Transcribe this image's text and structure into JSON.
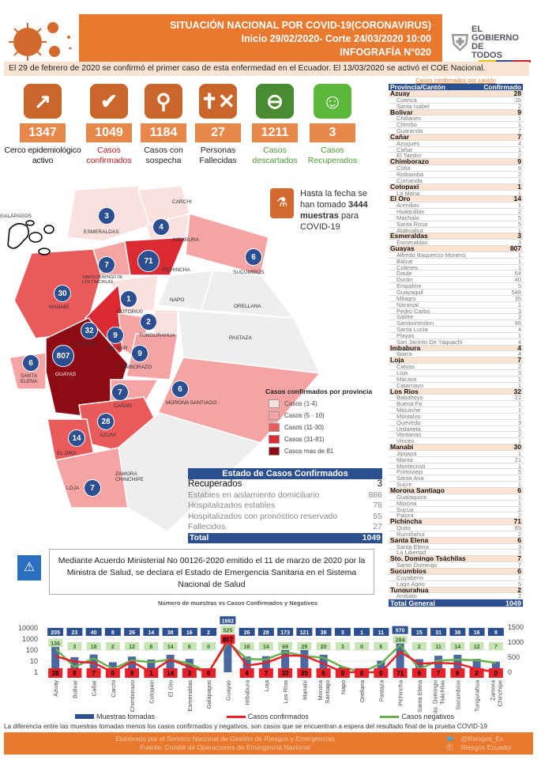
{
  "header": {
    "title": "SITUACIÓN NACIONAL POR  COVID-19(CORONAVIRUS)",
    "period": "Inicio 29/02/2020- Corte 24/03/2020 10:00",
    "infographic": "INFOGRAFÍA N°020",
    "logo_text": "EL GOBIERNO DE TODOS"
  },
  "info": "El 29 de febrero de 2020 se confirmó el primer caso de esta enfermedad en el Ecuador. El 13/03/2020 se activó el COE Nacional.",
  "stats": [
    {
      "value": "1347",
      "label1": "Cerco epidemiológico",
      "label2": "activo",
      "color": "#111",
      "icon_color": "#c8662b"
    },
    {
      "value": "1049",
      "label1": "Casos",
      "label2": "confirmados",
      "color": "#c0141e",
      "icon_color": "#c8662b"
    },
    {
      "value": "1184",
      "label1": "Casos con",
      "label2": "sospecha",
      "color": "#111",
      "icon_color": "#c8662b"
    },
    {
      "value": "27",
      "label1": "Personas",
      "label2": "Fallecidas",
      "color": "#111",
      "icon_color": "#c8662b"
    },
    {
      "value": "1211",
      "label1": "Casos",
      "label2": "descartados",
      "color": "#4a9a30",
      "icon_color": "#4a8a30"
    },
    {
      "value": "3",
      "label1": "Casos",
      "label2": "Recuperados",
      "color": "#4a9a30",
      "icon_color": "#5cb83a"
    }
  ],
  "samples": {
    "text1": "Hasta la fecha se",
    "text2": "han tomado",
    "value": "3444",
    "text3": "muestras",
    "text4": "para",
    "text5": "COVID-19"
  },
  "map": {
    "provinces": [
      "GALÁPAGOS",
      "ESMERALDAS",
      "CARCHI",
      "IMBABURA",
      "PICHINCHA",
      "SUCUMBÍOS",
      "SANTO DOMINGO DE LOS TSÁCHILAS",
      "NAPO",
      "ORELLANA",
      "MANABÍ",
      "COTOPAXI",
      "TUNGURAHUA",
      "LOS RÍOS",
      "BOLÍVAR",
      "PASTAZA",
      "CHIMBORAZO",
      "SANTA ELENA",
      "GUAYAS",
      "CAÑAR",
      "MORONA SANTIAGO",
      "AZUAY",
      "EL ORO",
      "ZAMORA CHINCHIPE",
      "LOJA"
    ],
    "bubbles": [
      "3",
      "4",
      "71",
      "6",
      "7",
      "30",
      "1",
      "2",
      "32",
      "9",
      "9",
      "6",
      "807",
      "7",
      "6",
      "28",
      "14",
      "7"
    ],
    "legend_title": "Casos confirmados por provincia",
    "legend": [
      {
        "label": "Casos (1-4)",
        "color": "#fbe0e0"
      },
      {
        "label": "Casos (5 - 10)",
        "color": "#f5a3a3"
      },
      {
        "label": "Casos (11-30)",
        "color": "#ea5a5a"
      },
      {
        "label": "Casos (31-81)",
        "color": "#dc2a32"
      },
      {
        "label": "Casos mas de 81",
        "color": "#8e0a14"
      }
    ]
  },
  "state_table": {
    "title": "Estado de Casos Confirmados",
    "rows": [
      {
        "label": "Recuperados",
        "value": "3"
      },
      {
        "label": "Estables en aislamiento domiciliario",
        "value": "886"
      },
      {
        "label": "Hospitalizados estables",
        "value": "78"
      },
      {
        "label": "Hospitalizados con pronóstico reservado",
        "value": "55"
      },
      {
        "label": "Fallecidos",
        "value": "27"
      }
    ],
    "total_label": "Total",
    "total_value": "1049"
  },
  "decree": "Mediante Acuerdo Ministerial No 00126-2020 emitido el 11 de marzo de 2020 por la Ministra de Salud, se declara el Estado de Emergencia Sanitaria en el Sistema Nacional de Salud",
  "canton_table": {
    "caption": "Casos confirmados por cantón",
    "col1": "Provincia/Cantón",
    "col2": "Confirmado",
    "groups": [
      {
        "name": "Azuay",
        "value": "28",
        "items": [
          [
            "Cuenca",
            "26"
          ],
          [
            "Santa Isabel",
            "2"
          ]
        ]
      },
      {
        "name": "Bolivar",
        "value": "9",
        "items": [
          [
            "Chillanes",
            "1"
          ],
          [
            "Chimbo",
            "1"
          ],
          [
            "Guaranda",
            "7"
          ]
        ]
      },
      {
        "name": "Cañar",
        "value": "7",
        "items": [
          [
            "Azogues",
            "4"
          ],
          [
            "Cañar",
            "1"
          ],
          [
            "El Tambo",
            "2"
          ]
        ]
      },
      {
        "name": "Chimborazo",
        "value": "9",
        "items": [
          [
            "Colta",
            "6"
          ],
          [
            "Riobamba",
            "2"
          ],
          [
            "Cumanda",
            "1"
          ]
        ]
      },
      {
        "name": "Cotopaxi",
        "value": "1",
        "items": [
          [
            "La Mana",
            "1"
          ]
        ]
      },
      {
        "name": "El Oro",
        "value": "14",
        "items": [
          [
            "Arenillas",
            "1"
          ],
          [
            "Huaquillas",
            "2"
          ],
          [
            "Machala",
            "5"
          ],
          [
            "Santa Rosa",
            "5"
          ],
          [
            "Atahualpa",
            "1"
          ]
        ]
      },
      {
        "name": "Esmeraldas",
        "value": "3",
        "items": [
          [
            "Esmeraldas",
            "3"
          ]
        ]
      },
      {
        "name": "Guayas",
        "value": "807",
        "items": [
          [
            "Alfredo Baquerizo Moreno",
            "1"
          ],
          [
            "Balzar",
            "1"
          ],
          [
            "Colimes",
            "1"
          ],
          [
            "Daule",
            "64"
          ],
          [
            "Durán",
            "40"
          ],
          [
            "Empalme",
            "5"
          ],
          [
            "Guayaquil",
            "548"
          ],
          [
            "Milagro",
            "35"
          ],
          [
            "Naranjal",
            "1"
          ],
          [
            "Pedro Carbo",
            "3"
          ],
          [
            "Salitre",
            "3"
          ],
          [
            "Samborondon",
            "96"
          ],
          [
            "Santa Lucia",
            "4"
          ],
          [
            "Playas",
            "1"
          ],
          [
            "San Jacinto De Yaguachi",
            "4"
          ]
        ]
      },
      {
        "name": "Imbabura",
        "value": "4",
        "items": [
          [
            "Ibarra",
            "4"
          ]
        ]
      },
      {
        "name": "Loja",
        "value": "7",
        "items": [
          [
            "Calvas",
            "2"
          ],
          [
            "Loja",
            "3"
          ],
          [
            "Macara",
            "1"
          ],
          [
            "Catamayo",
            "1"
          ]
        ]
      },
      {
        "name": "Los Rios",
        "value": "32",
        "items": [
          [
            "Babahoyo",
            "22"
          ],
          [
            "Buena Fe",
            "1"
          ],
          [
            "Mocache",
            "1"
          ],
          [
            "Montalvo",
            "1"
          ],
          [
            "Quevedo",
            "3"
          ],
          [
            "Urdaneta",
            "1"
          ],
          [
            "Ventanas",
            "2"
          ],
          [
            "Vinces",
            "1"
          ]
        ]
      },
      {
        "name": "Manabi",
        "value": "30",
        "items": [
          [
            "Jipijapa",
            "1"
          ],
          [
            "Manta",
            "21"
          ],
          [
            "Montecristi",
            "1"
          ],
          [
            "Portoviejo",
            "5"
          ],
          [
            "Santa Ana",
            "1"
          ],
          [
            "Sucre",
            "1"
          ]
        ]
      },
      {
        "name": "Morona Santiago",
        "value": "6",
        "items": [
          [
            "Gualaquiza",
            "1"
          ],
          [
            "Morona",
            "1"
          ],
          [
            "Sucúa",
            "2"
          ],
          [
            "Palora",
            "2"
          ]
        ]
      },
      {
        "name": "Pichincha",
        "value": "71",
        "items": [
          [
            "Quito",
            "69"
          ],
          [
            "Rumiñahui",
            "2"
          ]
        ]
      },
      {
        "name": "Santa Elena",
        "value": "6",
        "items": [
          [
            "Santa Elena",
            "3"
          ],
          [
            "La Libertad",
            "3"
          ]
        ]
      },
      {
        "name": "Sto. Domingo Tsáchilas",
        "value": "7",
        "items": [
          [
            "Santo Domingo",
            "7"
          ]
        ]
      },
      {
        "name": "Sucumbíos",
        "value": "6",
        "items": [
          [
            "Cuyabeno",
            "1"
          ],
          [
            "Lago Agrio",
            "5"
          ]
        ]
      },
      {
        "name": "Tungurahua",
        "value": "2",
        "items": [
          [
            "Ambato",
            "2"
          ]
        ]
      }
    ],
    "total_label": "Total General",
    "total_value": "1049"
  },
  "chart_data": {
    "type": "bar",
    "title": "Número de muestras vs Casos Confirmados y Negativos",
    "categories": [
      "Azuay",
      "Bolivar",
      "Cañar",
      "Carchi",
      "Chimborazo",
      "Cotopaxi",
      "El Oro",
      "Esmeraldas",
      "Galápagos",
      "Guayas",
      "Imbabura",
      "Loja",
      "Los Ríos",
      "Manabí",
      "Morona Santiago",
      "Napo",
      "Orellana",
      "Pastaza",
      "Pichincha",
      "Santa Elena",
      "Sto. Domingo Tsáchilas",
      "Sucumbíos",
      "Tungurahua",
      "Zamora Chinchipe"
    ],
    "series": [
      {
        "name": "Muestras tomadas",
        "type": "bar",
        "color": "#2b4f91",
        "values": [
          205,
          23,
          40,
          8,
          26,
          14,
          38,
          16,
          2,
          1992,
          26,
          28,
          173,
          121,
          38,
          3,
          1,
          11,
          570,
          15,
          31,
          38,
          16,
          9
        ]
      },
      {
        "name": "Casos confirmados",
        "type": "line",
        "color": "#e8202a",
        "values": [
          28,
          9,
          7,
          0,
          9,
          1,
          14,
          3,
          0,
          807,
          4,
          7,
          32,
          30,
          6,
          0,
          0,
          0,
          71,
          6,
          7,
          6,
          2,
          0
        ]
      },
      {
        "name": "Casos negativos",
        "type": "line",
        "color": "#6ab04c",
        "values": [
          136,
          3,
          18,
          2,
          12,
          8,
          14,
          6,
          0,
          525,
          16,
          14,
          69,
          29,
          20,
          3,
          0,
          6,
          284,
          2,
          11,
          14,
          12,
          7
        ]
      }
    ],
    "y_left_ticks": [
      "10000",
      "1000",
      "100",
      "10",
      "1"
    ],
    "y_left_scale": "log",
    "y_right_ticks": [
      "1500",
      "1000",
      "500",
      "0"
    ],
    "legend": "bottom"
  },
  "chart_note": "La diferencia entre las muestras tomadas menos los casos confirmados y negativos, son casos que se encuentran a espera del resultado final de la prueba COVID-19",
  "footer": {
    "line1": "Elaborado por el Servicio Nacional de Gestión de Riesgos y Emergencias",
    "line2": "Fuente: Comité de Operaciones de Emergencia Nacional",
    "twitter": "@Riesgos_Ec",
    "facebook": "Riesgos Ecuador"
  }
}
